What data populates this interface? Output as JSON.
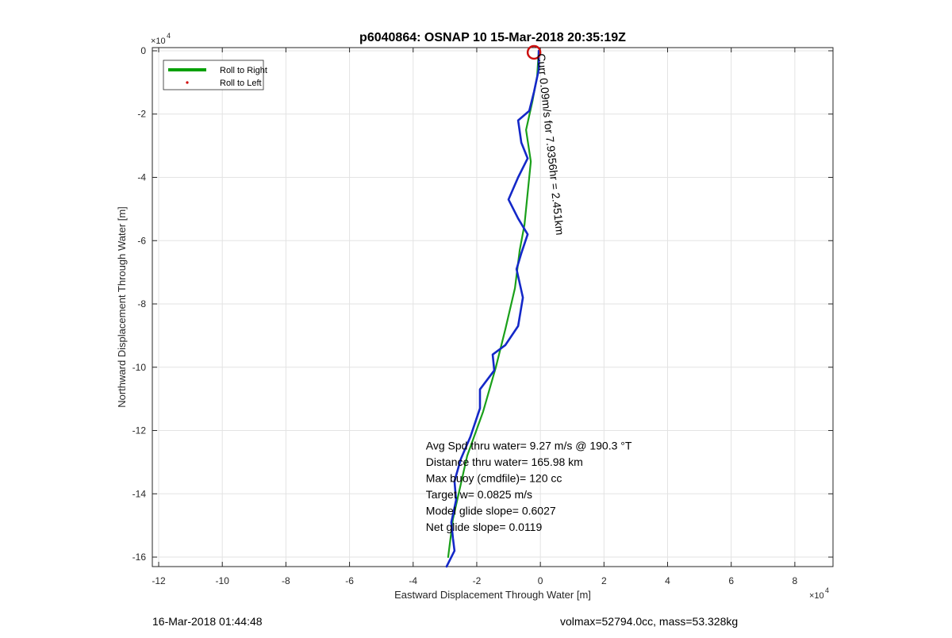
{
  "chart_data": {
    "type": "line",
    "title": "p6040864: OSNAP 10 15-Mar-2018 20:35:19Z",
    "xlabel": "Eastward Displacement Through Water [m]",
    "ylabel": "Northward Displacement Through Water [m]",
    "x_exponent_label": "×10",
    "x_exponent_power": "4",
    "y_exponent_label": "×10",
    "y_exponent_power": "4",
    "xlim": [
      -12.2,
      9.2
    ],
    "ylim": [
      -16.3,
      0.1
    ],
    "xticks": [
      -12,
      -10,
      -8,
      -6,
      -4,
      -2,
      0,
      2,
      4,
      6,
      8
    ],
    "yticks": [
      0,
      -2,
      -4,
      -6,
      -8,
      -10,
      -12,
      -14,
      -16
    ],
    "grid": true,
    "legend_position": "top-left",
    "legend": [
      {
        "label": "Roll to Right",
        "color": "#00a000",
        "marker": "line"
      },
      {
        "label": "Roll to Left",
        "color": "#d00000",
        "marker": "dot"
      }
    ],
    "series": [
      {
        "name": "Roll to Right",
        "color": "#1aa01a",
        "x": [
          -0.05,
          -0.1,
          -0.25,
          -0.45,
          -0.3,
          -0.4,
          -0.5,
          -0.65,
          -0.8,
          -1.1,
          -1.4,
          -1.8,
          -2.3,
          -2.75,
          -2.9
        ],
        "y": [
          0.0,
          -0.8,
          -1.6,
          -2.5,
          -3.5,
          -4.5,
          -5.5,
          -6.3,
          -7.5,
          -8.8,
          -10.0,
          -11.4,
          -12.8,
          -14.8,
          -16.0
        ]
      },
      {
        "name": "",
        "color": "#1428c8",
        "x": [
          -0.05,
          -0.05,
          -0.2,
          -0.35,
          -0.7,
          -0.6,
          -0.4,
          -0.7,
          -1.0,
          -0.7,
          -0.4,
          -0.6,
          -0.75,
          -0.55,
          -0.7,
          -1.1,
          -1.5,
          -1.45,
          -1.9,
          -1.9,
          -2.2,
          -2.5,
          -2.7,
          -2.65,
          -2.8,
          -2.75,
          -2.7,
          -2.95
        ],
        "y": [
          0.0,
          -0.6,
          -1.3,
          -1.9,
          -2.2,
          -2.9,
          -3.4,
          -4.0,
          -4.7,
          -5.3,
          -5.8,
          -6.4,
          -6.9,
          -7.8,
          -8.7,
          -9.3,
          -9.6,
          -10.1,
          -10.7,
          -11.3,
          -12.2,
          -12.9,
          -13.6,
          -14.2,
          -14.9,
          -15.4,
          -15.8,
          -16.3
        ]
      }
    ],
    "current_position": {
      "x": -0.2,
      "y": -0.05,
      "color": "#cc1010"
    },
    "rotated_annotation": {
      "text": "Curr 0.09m/s for 7.9356hr = 2.451km",
      "anchor_x": -0.1,
      "anchor_y": -0.1,
      "angle_deg": 84
    },
    "annotations": [
      "Avg Spd thru water=  9.27 m/s @ 190.3 °T",
      "Distance thru water= 165.98 km",
      "Max buoy (cmdfile)= 120 cc",
      "Target w= 0.0825 m/s",
      "Model glide slope= 0.6027",
      "Net glide slope= 0.0119"
    ],
    "annotation_anchor": {
      "x": -3.6,
      "y": -12.6
    }
  },
  "footer": {
    "timestamp": "16-Mar-2018 01:44:48",
    "mass_info": "volmax=52794.0cc, mass=53.328kg"
  }
}
